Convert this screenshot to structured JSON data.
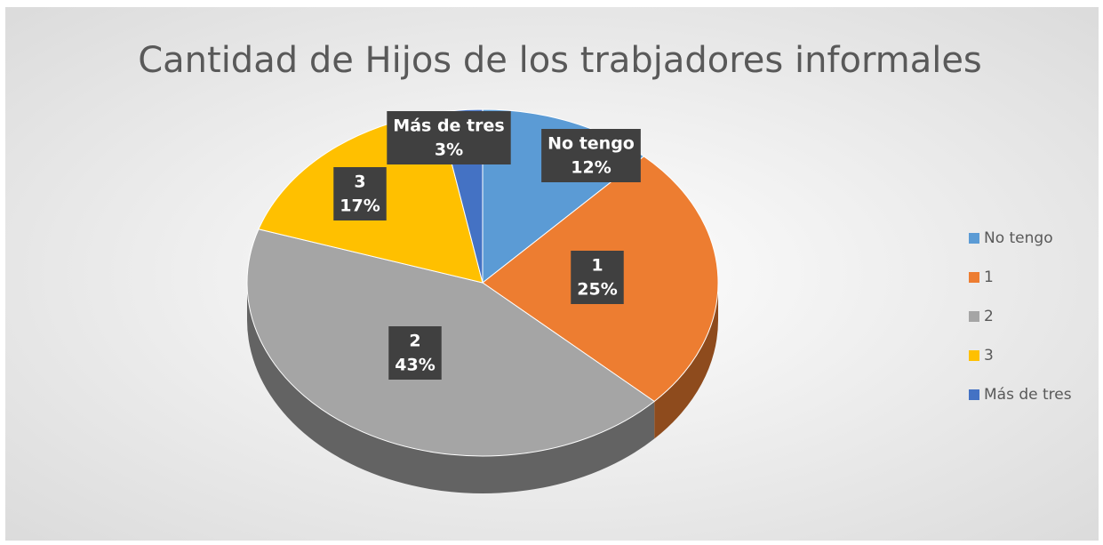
{
  "chart_data": {
    "type": "pie",
    "title": "Cantidad de Hijos de los trabjadores informales",
    "categories": [
      "No tengo",
      "1",
      "2",
      "3",
      "Más de tres"
    ],
    "values": [
      12,
      25,
      43,
      17,
      3
    ],
    "value_labels": [
      "12%",
      "25%",
      "43%",
      "17%",
      "3%"
    ],
    "colors": [
      "#5b9bd5",
      "#ed7d31",
      "#a5a5a5",
      "#ffc000",
      "#4472c4"
    ],
    "legend": "right"
  }
}
